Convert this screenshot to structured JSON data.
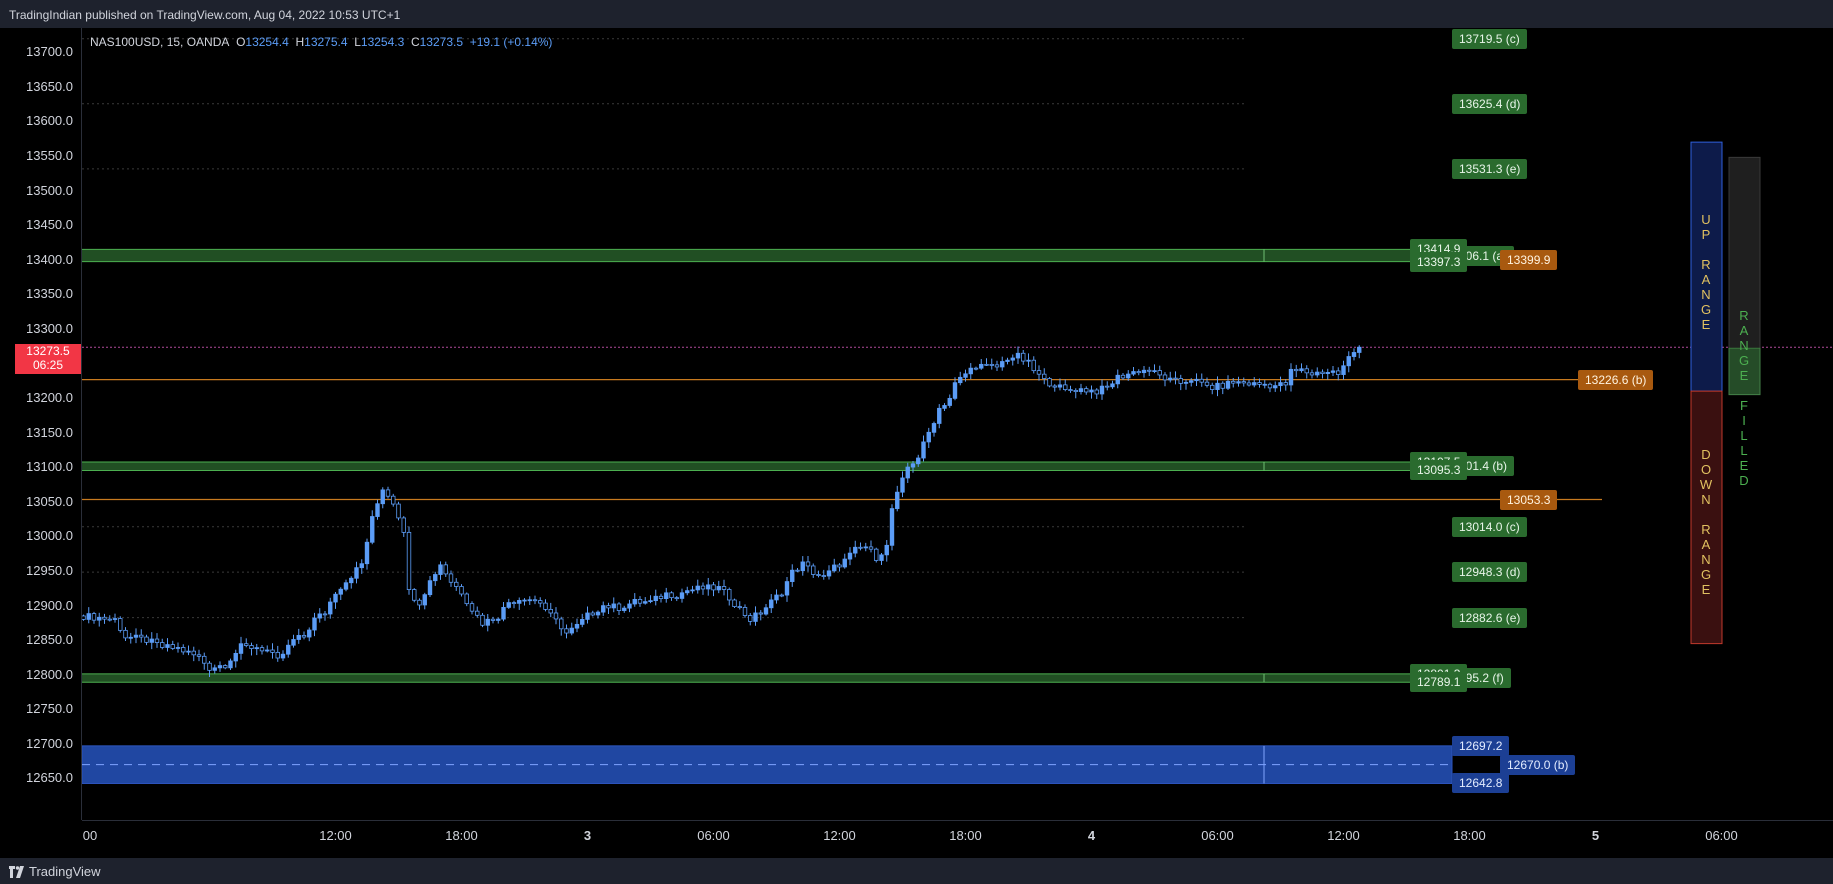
{
  "header": {
    "published": "TradingIndian published on TradingView.com, Aug 04, 2022 10:53 UTC+1"
  },
  "legend": {
    "symbol": "NAS100USD, 15, OANDA",
    "o_label": "O",
    "o": "13254.4",
    "h_label": "H",
    "h": "13275.4",
    "l_label": "L",
    "l": "13254.3",
    "c_label": "C",
    "c": "13273.5",
    "change": "+19.1 (+0.14%)"
  },
  "price_tag": {
    "price": "13273.5",
    "countdown": "06:25"
  },
  "footer": {
    "brand": "TradingView"
  },
  "colors": {
    "bg": "#000000",
    "candle": "#5b9cf6",
    "green_zone": "#3d8f3f",
    "orange_line": "#c77a1f",
    "blue_zone": "#2b5fd9",
    "up_panel": "#0d1b4a",
    "down_panel": "#3a1010"
  },
  "chart_data": {
    "type": "candlestick",
    "symbol": "NAS100USD",
    "timeframe": "15",
    "ylim": [
      12590,
      13735
    ],
    "y_ticks": [
      "13700.0",
      "13650.0",
      "13600.0",
      "13550.0",
      "13500.0",
      "13450.0",
      "13400.0",
      "13350.0",
      "13300.0",
      "13250.0",
      "13200.0",
      "13150.0",
      "13100.0",
      "13050.0",
      "13000.0",
      "12950.0",
      "12900.0",
      "12850.0",
      "12800.0",
      "12750.0",
      "12700.0",
      "12650.0"
    ],
    "x_ticks": [
      {
        "label": "00",
        "bar": 0,
        "bold": false
      },
      {
        "label": "12:00",
        "bar": 48,
        "bold": false
      },
      {
        "label": "18:00",
        "bar": 72,
        "bold": false
      },
      {
        "label": "3",
        "bar": 96,
        "bold": true
      },
      {
        "label": "06:00",
        "bar": 120,
        "bold": false
      },
      {
        "label": "12:00",
        "bar": 144,
        "bold": false
      },
      {
        "label": "18:00",
        "bar": 168,
        "bold": false
      },
      {
        "label": "4",
        "bar": 192,
        "bold": true
      },
      {
        "label": "06:00",
        "bar": 216,
        "bold": false
      },
      {
        "label": "12:00",
        "bar": 240,
        "bold": false
      },
      {
        "label": "18:00",
        "bar": 264,
        "bold": false
      },
      {
        "label": "5",
        "bar": 288,
        "bold": true
      },
      {
        "label": "06:00",
        "bar": 312,
        "bold": false
      }
    ],
    "close_path": [
      [
        0,
        12885
      ],
      [
        6,
        12880
      ],
      [
        8,
        12855
      ],
      [
        12,
        12850
      ],
      [
        15,
        12840
      ],
      [
        18,
        12838
      ],
      [
        22,
        12825
      ],
      [
        24,
        12810
      ],
      [
        27,
        12815
      ],
      [
        30,
        12840
      ],
      [
        33,
        12840
      ],
      [
        35,
        12835
      ],
      [
        37,
        12820
      ],
      [
        40,
        12850
      ],
      [
        42,
        12855
      ],
      [
        44,
        12880
      ],
      [
        46,
        12890
      ],
      [
        48,
        12920
      ],
      [
        50,
        12935
      ],
      [
        53,
        12960
      ],
      [
        55,
        13025
      ],
      [
        57,
        13070
      ],
      [
        59,
        13050
      ],
      [
        61,
        13010
      ],
      [
        62,
        12920
      ],
      [
        64,
        12905
      ],
      [
        66,
        12935
      ],
      [
        68,
        12960
      ],
      [
        70,
        12935
      ],
      [
        72,
        12920
      ],
      [
        74,
        12895
      ],
      [
        76,
        12875
      ],
      [
        79,
        12885
      ],
      [
        81,
        12905
      ],
      [
        84,
        12912
      ],
      [
        87,
        12905
      ],
      [
        89,
        12885
      ],
      [
        91,
        12870
      ],
      [
        92,
        12860
      ],
      [
        94,
        12870
      ],
      [
        96,
        12885
      ],
      [
        99,
        12900
      ],
      [
        102,
        12897
      ],
      [
        105,
        12905
      ],
      [
        108,
        12905
      ],
      [
        111,
        12917
      ],
      [
        113,
        12915
      ],
      [
        115,
        12922
      ],
      [
        118,
        12925
      ],
      [
        121,
        12925
      ],
      [
        123,
        12912
      ],
      [
        125,
        12895
      ],
      [
        127,
        12880
      ],
      [
        129,
        12890
      ],
      [
        131,
        12905
      ],
      [
        133,
        12920
      ],
      [
        135,
        12948
      ],
      [
        137,
        12960
      ],
      [
        139,
        12948
      ],
      [
        141,
        12940
      ],
      [
        143,
        12955
      ],
      [
        145,
        12965
      ],
      [
        147,
        12980
      ],
      [
        149,
        12985
      ],
      [
        151,
        12970
      ],
      [
        153,
        12985
      ],
      [
        154,
        13040
      ],
      [
        155,
        13060
      ],
      [
        157,
        13100
      ],
      [
        159,
        13115
      ],
      [
        161,
        13150
      ],
      [
        163,
        13185
      ],
      [
        165,
        13200
      ],
      [
        166,
        13220
      ],
      [
        168,
        13235
      ],
      [
        170,
        13248
      ],
      [
        172,
        13245
      ],
      [
        174,
        13245
      ],
      [
        176,
        13258
      ],
      [
        178,
        13260
      ],
      [
        180,
        13250
      ],
      [
        181,
        13240
      ],
      [
        183,
        13225
      ],
      [
        185,
        13220
      ],
      [
        187,
        13210
      ],
      [
        189,
        13213
      ],
      [
        191,
        13212
      ],
      [
        193,
        13210
      ],
      [
        195,
        13215
      ],
      [
        197,
        13230
      ],
      [
        199,
        13235
      ],
      [
        201,
        13240
      ],
      [
        203,
        13240
      ],
      [
        205,
        13232
      ],
      [
        207,
        13225
      ],
      [
        209,
        13222
      ],
      [
        211,
        13228
      ],
      [
        213,
        13220
      ],
      [
        215,
        13215
      ],
      [
        217,
        13218
      ],
      [
        219,
        13223
      ],
      [
        221,
        13222
      ],
      [
        223,
        13220
      ],
      [
        225,
        13220
      ],
      [
        227,
        13218
      ],
      [
        229,
        13220
      ],
      [
        230,
        13238
      ],
      [
        232,
        13240
      ],
      [
        234,
        13235
      ],
      [
        236,
        13238
      ],
      [
        238,
        13238
      ],
      [
        239,
        13235
      ],
      [
        240,
        13245
      ],
      [
        241,
        13258
      ],
      [
        242,
        13266
      ],
      [
        243,
        13273.5
      ]
    ],
    "horizontal_levels": [
      {
        "price": 13414.9,
        "type": "green_zone_top"
      },
      {
        "price": 13397.3,
        "type": "green_zone_bottom"
      },
      {
        "price": 13226.6,
        "type": "orange_line"
      },
      {
        "price": 13107.5,
        "type": "green_zone_top"
      },
      {
        "price": 13095.3,
        "type": "green_zone_bottom"
      },
      {
        "price": 13053.3,
        "type": "orange_line"
      },
      {
        "price": 12801.3,
        "type": "green_zone_top"
      },
      {
        "price": 12789.1,
        "type": "green_zone_bottom"
      },
      {
        "price": 12697.2,
        "type": "blue_zone_top"
      },
      {
        "price": 12670.0,
        "type": "blue_zone_mid"
      },
      {
        "price": 12642.8,
        "type": "blue_zone_bottom"
      },
      {
        "price": 13719.5,
        "type": "dotted"
      },
      {
        "price": 13625.4,
        "type": "dotted"
      },
      {
        "price": 13531.3,
        "type": "dotted"
      },
      {
        "price": 13014.0,
        "type": "dotted"
      },
      {
        "price": 12948.3,
        "type": "dotted"
      },
      {
        "price": 12882.6,
        "type": "dotted"
      }
    ],
    "labels": [
      {
        "text": "13719.5 (c)",
        "price": 13719.5,
        "kind": "g",
        "col": "right"
      },
      {
        "text": "13625.4 (d)",
        "price": 13625.4,
        "kind": "g",
        "col": "right"
      },
      {
        "text": "13531.3 (e)",
        "price": 13531.3,
        "kind": "g",
        "col": "right"
      },
      {
        "text": "406.1 (a)",
        "price": 13406.1,
        "kind": "g",
        "col": "right"
      },
      {
        "text": "13414.9",
        "price": 13414.9,
        "kind": "g",
        "col": "left"
      },
      {
        "text": "13397.3",
        "price": 13397.3,
        "kind": "g",
        "col": "left"
      },
      {
        "text": "13399.9",
        "price": 13399.9,
        "kind": "o",
        "col": "far"
      },
      {
        "text": "13226.6 (b)",
        "price": 13226.6,
        "kind": "o",
        "col": "farther"
      },
      {
        "text": "101.4 (b)",
        "price": 13101.4,
        "kind": "g",
        "col": "right"
      },
      {
        "text": "13107.5",
        "price": 13107.5,
        "kind": "g",
        "col": "left"
      },
      {
        "text": "13095.3",
        "price": 13095.3,
        "kind": "g",
        "col": "left"
      },
      {
        "text": "13053.3",
        "price": 13053.3,
        "kind": "o",
        "col": "far"
      },
      {
        "text": "13014.0 (c)",
        "price": 13014.0,
        "kind": "g",
        "col": "right"
      },
      {
        "text": "12948.3 (d)",
        "price": 12948.3,
        "kind": "g",
        "col": "right"
      },
      {
        "text": "12882.6 (e)",
        "price": 12882.6,
        "kind": "g",
        "col": "right"
      },
      {
        "text": "795.2 (f)",
        "price": 12795.2,
        "kind": "g",
        "col": "right"
      },
      {
        "text": "12801.3",
        "price": 12801.3,
        "kind": "g",
        "col": "left"
      },
      {
        "text": "12789.1",
        "price": 12789.1,
        "kind": "g",
        "col": "left"
      },
      {
        "text": "12697.2",
        "price": 12697.2,
        "kind": "b",
        "col": "right"
      },
      {
        "text": "12642.8",
        "price": 12642.8,
        "kind": "b",
        "col": "right"
      },
      {
        "text": "12670.0 (b)",
        "price": 12670.0,
        "kind": "b",
        "col": "far"
      }
    ],
    "up_range_label": "UP RANGE",
    "down_range_label": "DOWN RANGE",
    "range_filled_label": "RANGE FILLED",
    "up_range_top": 13570,
    "range_mid": 13210,
    "down_range_bottom": 12845,
    "filled_top": 13548,
    "filled_bottom": 13205
  }
}
